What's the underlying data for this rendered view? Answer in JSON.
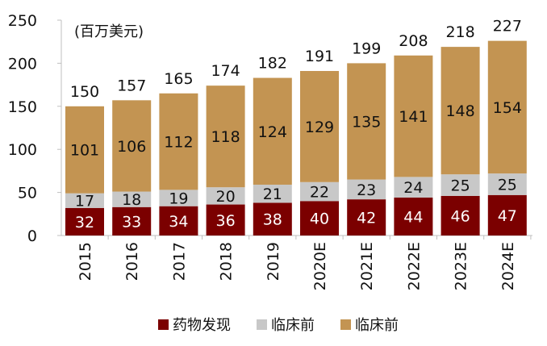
{
  "chart_data": {
    "type": "bar",
    "stacked": true,
    "unit_label": "(百万美元)",
    "ylim": [
      0,
      250
    ],
    "yticks": [
      0,
      50,
      100,
      150,
      200,
      250
    ],
    "categories": [
      "2015",
      "2016",
      "2017",
      "2018",
      "2019",
      "2020E",
      "2021E",
      "2022E",
      "2023E",
      "2024E"
    ],
    "series": [
      {
        "name": "药物发现",
        "color": "#7b0000",
        "label_color": "#ffffff",
        "values": [
          32,
          33,
          34,
          36,
          38,
          40,
          42,
          44,
          46,
          47
        ]
      },
      {
        "name": "临床前",
        "color": "#c8c8c8",
        "label_color": "#111111",
        "values": [
          17,
          18,
          19,
          20,
          21,
          22,
          23,
          24,
          25,
          25
        ]
      },
      {
        "name": "临床前",
        "color": "#c39452",
        "label_color": "#111111",
        "values": [
          101,
          106,
          112,
          118,
          124,
          129,
          135,
          141,
          148,
          154
        ]
      }
    ],
    "totals": [
      150,
      157,
      165,
      174,
      182,
      191,
      199,
      208,
      218,
      227
    ],
    "grid": false,
    "legend_position": "bottom"
  }
}
